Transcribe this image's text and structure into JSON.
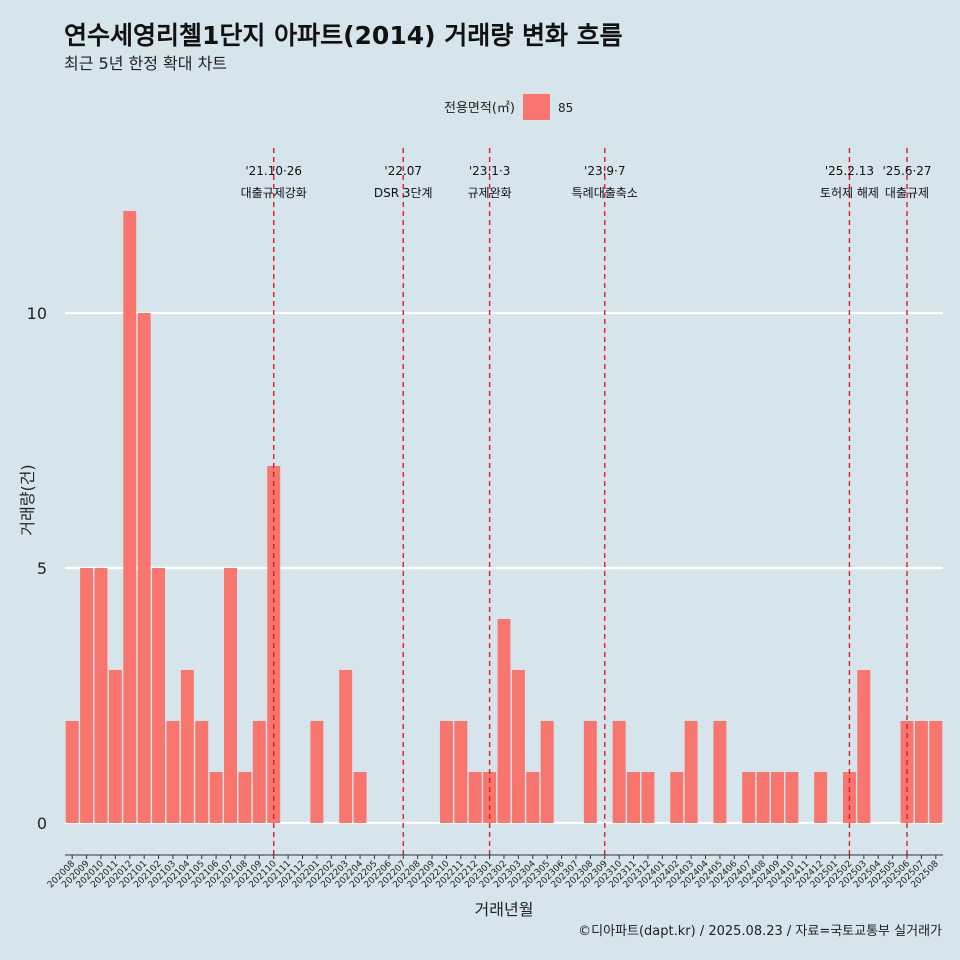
{
  "chart_data": {
    "type": "bar",
    "title": "연수세영리첼1단지 아파트(2014) 거래량 변화 흐름",
    "subtitle": "최근 5년 한정 확대 차트",
    "xlabel": "거래년월",
    "ylabel": "거래량(건)",
    "ylim": [
      0,
      12
    ],
    "yticks": [
      0,
      5,
      10
    ],
    "grid": "horizontal-major",
    "legend": {
      "title": "전용면적(㎡)",
      "position": "top-center",
      "items": [
        {
          "label": "85",
          "color": "#f8766d"
        }
      ]
    },
    "series": [
      {
        "name": "85",
        "color": "#f8766d"
      }
    ],
    "categories": [
      "202008",
      "202009",
      "202010",
      "202011",
      "202012",
      "202101",
      "202102",
      "202103",
      "202104",
      "202105",
      "202106",
      "202107",
      "202108",
      "202109",
      "202110",
      "202111",
      "202112",
      "202201",
      "202202",
      "202203",
      "202204",
      "202205",
      "202206",
      "202207",
      "202208",
      "202209",
      "202210",
      "202211",
      "202212",
      "202301",
      "202302",
      "202303",
      "202304",
      "202305",
      "202306",
      "202307",
      "202308",
      "202309",
      "202310",
      "202311",
      "202312",
      "202401",
      "202402",
      "202403",
      "202404",
      "202405",
      "202406",
      "202407",
      "202408",
      "202409",
      "202410",
      "202411",
      "202412",
      "202501",
      "202502",
      "202503",
      "202504",
      "202505",
      "202506",
      "202507",
      "202508"
    ],
    "values": [
      2,
      5,
      5,
      3,
      12,
      10,
      5,
      2,
      3,
      2,
      1,
      5,
      1,
      2,
      7,
      0,
      0,
      2,
      0,
      3,
      1,
      0,
      0,
      0,
      0,
      0,
      2,
      2,
      1,
      1,
      4,
      3,
      1,
      2,
      0,
      0,
      2,
      0,
      2,
      1,
      1,
      0,
      1,
      2,
      0,
      2,
      0,
      1,
      1,
      1,
      1,
      0,
      1,
      0,
      1,
      3,
      0,
      0,
      2,
      2,
      2
    ],
    "events": [
      {
        "date": "'21.10·26",
        "label": "대출규제강화",
        "position": 14.0
      },
      {
        "date": "'22.07",
        "label": "DSR 3단계",
        "position": 23.0
      },
      {
        "date": "'23.1·3",
        "label": "규제완화",
        "position": 29.0
      },
      {
        "date": "'23.9·7",
        "label": "특례대출축소",
        "position": 37.0
      },
      {
        "date": "'25.2.13",
        "label": "토허제 해제",
        "position": 54.0
      },
      {
        "date": "'25.6·27",
        "label": "대출규제",
        "position": 58.0
      }
    ],
    "caption": "©디아파트(dapt.kr) / 2025.08.23 / 자료=국토교통부 실거래가"
  }
}
